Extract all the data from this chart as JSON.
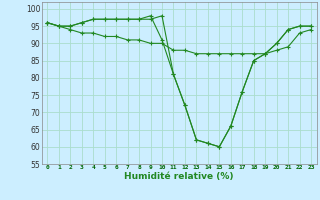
{
  "x": [
    0,
    1,
    2,
    3,
    4,
    5,
    6,
    7,
    8,
    9,
    10,
    11,
    12,
    13,
    14,
    15,
    16,
    17,
    18,
    19,
    20,
    21,
    22,
    23
  ],
  "line1": [
    96,
    95,
    95,
    96,
    97,
    97,
    97,
    97,
    97,
    97,
    98,
    81,
    72,
    62,
    61,
    60,
    66,
    76,
    85,
    87,
    90,
    94,
    95,
    95
  ],
  "line2": [
    96,
    95,
    95,
    96,
    97,
    97,
    97,
    97,
    97,
    98,
    91,
    81,
    72,
    62,
    61,
    60,
    66,
    76,
    85,
    87,
    90,
    94,
    95,
    95
  ],
  "line3": [
    96,
    95,
    94,
    93,
    93,
    92,
    92,
    91,
    91,
    90,
    90,
    88,
    88,
    87,
    87,
    87,
    87,
    87,
    87,
    87,
    88,
    89,
    93,
    94
  ],
  "bg_color": "#cceeff",
  "line_color": "#228822",
  "grid_color": "#aaddcc",
  "xlabel": "Humidité relative (%)",
  "ylim": [
    55,
    102
  ],
  "xlim": [
    -0.5,
    23.5
  ],
  "yticks": [
    55,
    60,
    65,
    70,
    75,
    80,
    85,
    90,
    95,
    100
  ],
  "xticks": [
    0,
    1,
    2,
    3,
    4,
    5,
    6,
    7,
    8,
    9,
    10,
    11,
    12,
    13,
    14,
    15,
    16,
    17,
    18,
    19,
    20,
    21,
    22,
    23
  ]
}
